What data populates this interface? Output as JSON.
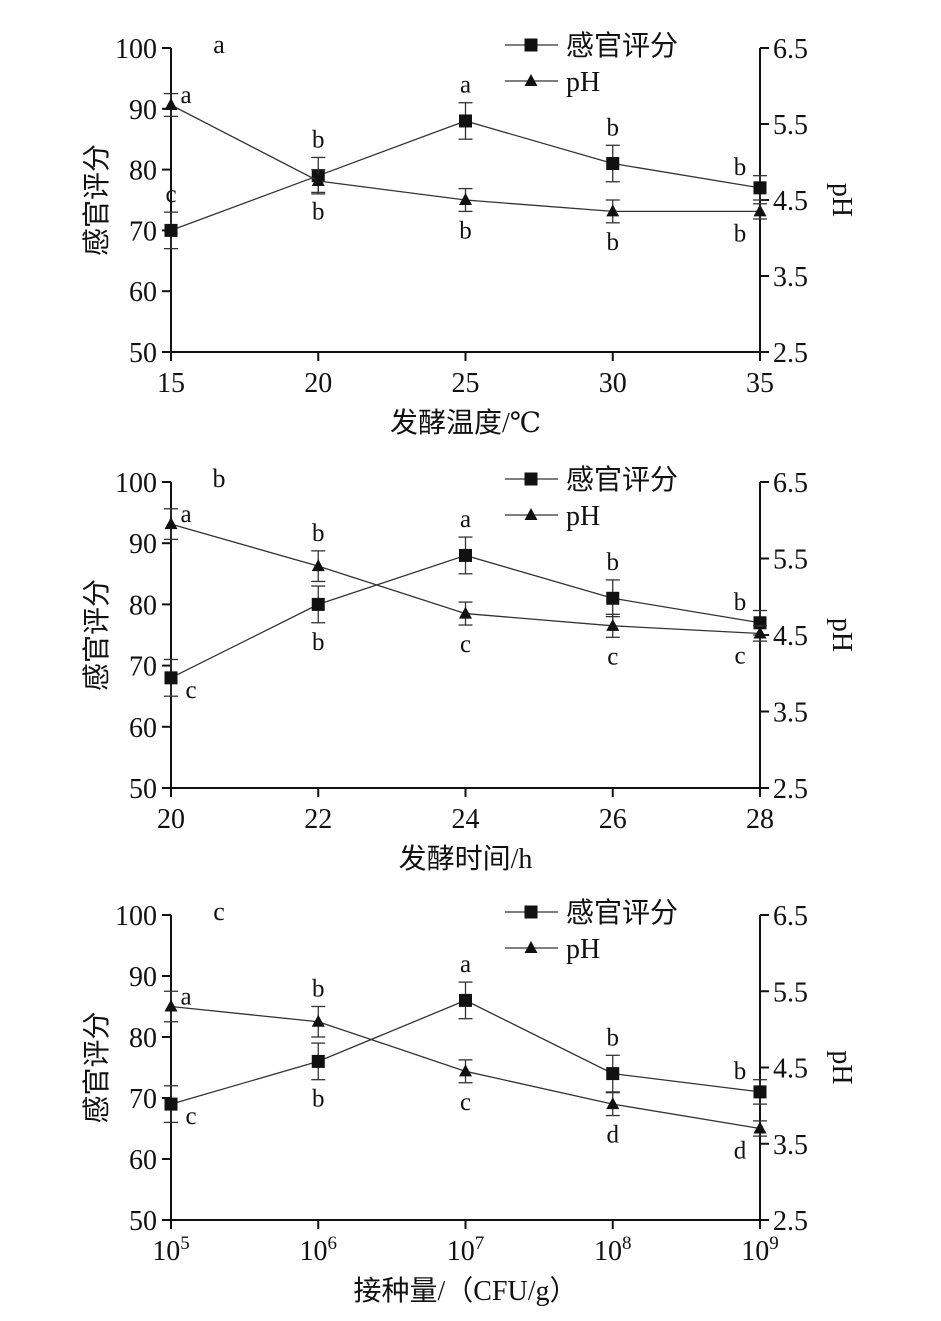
{
  "colors": {
    "ink": "#111111",
    "line": "#333333",
    "marker": "#111111"
  },
  "chart_data": [
    {
      "type": "line",
      "panel_letter": "a",
      "xlabel": "发酵温度/℃",
      "ylabel_left": "感官评分",
      "ylabel_right": "pH",
      "categories": [
        "15",
        "20",
        "25",
        "30",
        "35"
      ],
      "ylim_left": [
        50,
        100
      ],
      "yticks_left": [
        "50",
        "60",
        "70",
        "80",
        "90",
        "100"
      ],
      "ylim_right": [
        2.5,
        6.5
      ],
      "yticks_right": [
        "2.5",
        "3.5",
        "4.5",
        "5.5",
        "6.5"
      ],
      "legend_position": "top-right",
      "series": [
        {
          "name": "感官评分",
          "marker": "square",
          "axis": "left",
          "values": [
            70,
            79,
            88,
            81,
            77
          ],
          "errors": [
            3,
            3,
            3,
            3,
            2
          ],
          "letters": [
            "c",
            "b",
            "a",
            "b",
            "b"
          ],
          "letter_pos": [
            "above",
            "above",
            "above",
            "above",
            "above-left"
          ]
        },
        {
          "name": "pH",
          "marker": "triangle",
          "axis": "right",
          "values": [
            5.75,
            4.75,
            4.5,
            4.35,
            4.35
          ],
          "errors": [
            0.15,
            0.15,
            0.15,
            0.15,
            0.1
          ],
          "letters": [
            "a",
            "b",
            "b",
            "b",
            "b"
          ],
          "letter_pos": [
            "right",
            "below",
            "below",
            "below",
            "below-left"
          ]
        }
      ]
    },
    {
      "type": "line",
      "panel_letter": "b",
      "xlabel": "发酵时间/h",
      "ylabel_left": "感官评分",
      "ylabel_right": "pH",
      "categories": [
        "20",
        "22",
        "24",
        "26",
        "28"
      ],
      "ylim_left": [
        50,
        100
      ],
      "yticks_left": [
        "50",
        "60",
        "70",
        "80",
        "90",
        "100"
      ],
      "ylim_right": [
        2.5,
        6.5
      ],
      "yticks_right": [
        "2.5",
        "3.5",
        "4.5",
        "5.5",
        "6.5"
      ],
      "legend_position": "top-right",
      "series": [
        {
          "name": "感官评分",
          "marker": "square",
          "axis": "left",
          "values": [
            68,
            80,
            88,
            81,
            77
          ],
          "errors": [
            3,
            3,
            3,
            3,
            2
          ],
          "letters": [
            "c",
            "b",
            "a",
            "b",
            "b"
          ],
          "letter_pos": [
            "below-right",
            "below",
            "above",
            "above",
            "above-left"
          ]
        },
        {
          "name": "pH",
          "marker": "triangle",
          "axis": "right",
          "values": [
            5.95,
            5.4,
            4.78,
            4.62,
            4.52
          ],
          "errors": [
            0.2,
            0.2,
            0.15,
            0.15,
            0.1
          ],
          "letters": [
            "a",
            "b",
            "c",
            "c",
            "c"
          ],
          "letter_pos": [
            "right",
            "above",
            "below",
            "below",
            "below-left"
          ]
        }
      ]
    },
    {
      "type": "line",
      "panel_letter": "c",
      "xlabel": "接种量/（CFU/g）",
      "ylabel_left": "感官评分",
      "ylabel_right": "pH",
      "categories": [
        "5",
        "6",
        "7",
        "8",
        "9"
      ],
      "tick_base": "10",
      "ylim_left": [
        50,
        100
      ],
      "yticks_left": [
        "50",
        "60",
        "70",
        "80",
        "90",
        "100"
      ],
      "ylim_right": [
        2.5,
        6.5
      ],
      "yticks_right": [
        "2.5",
        "3.5",
        "4.5",
        "5.5",
        "6.5"
      ],
      "legend_position": "top-right",
      "series": [
        {
          "name": "感官评分",
          "marker": "square",
          "axis": "left",
          "values": [
            69,
            76,
            86,
            74,
            71
          ],
          "errors": [
            3,
            3,
            3,
            3,
            2
          ],
          "letters": [
            "c",
            "b",
            "a",
            "b",
            "b"
          ],
          "letter_pos": [
            "below-right",
            "below",
            "above",
            "above",
            "above-left"
          ]
        },
        {
          "name": "pH",
          "marker": "triangle",
          "axis": "right",
          "values": [
            5.3,
            5.1,
            4.45,
            4.02,
            3.7
          ],
          "errors": [
            0.2,
            0.2,
            0.15,
            0.15,
            0.1
          ],
          "letters": [
            "a",
            "b",
            "c",
            "d",
            "d"
          ],
          "letter_pos": [
            "right",
            "above",
            "below",
            "below",
            "below-left"
          ]
        }
      ]
    }
  ]
}
